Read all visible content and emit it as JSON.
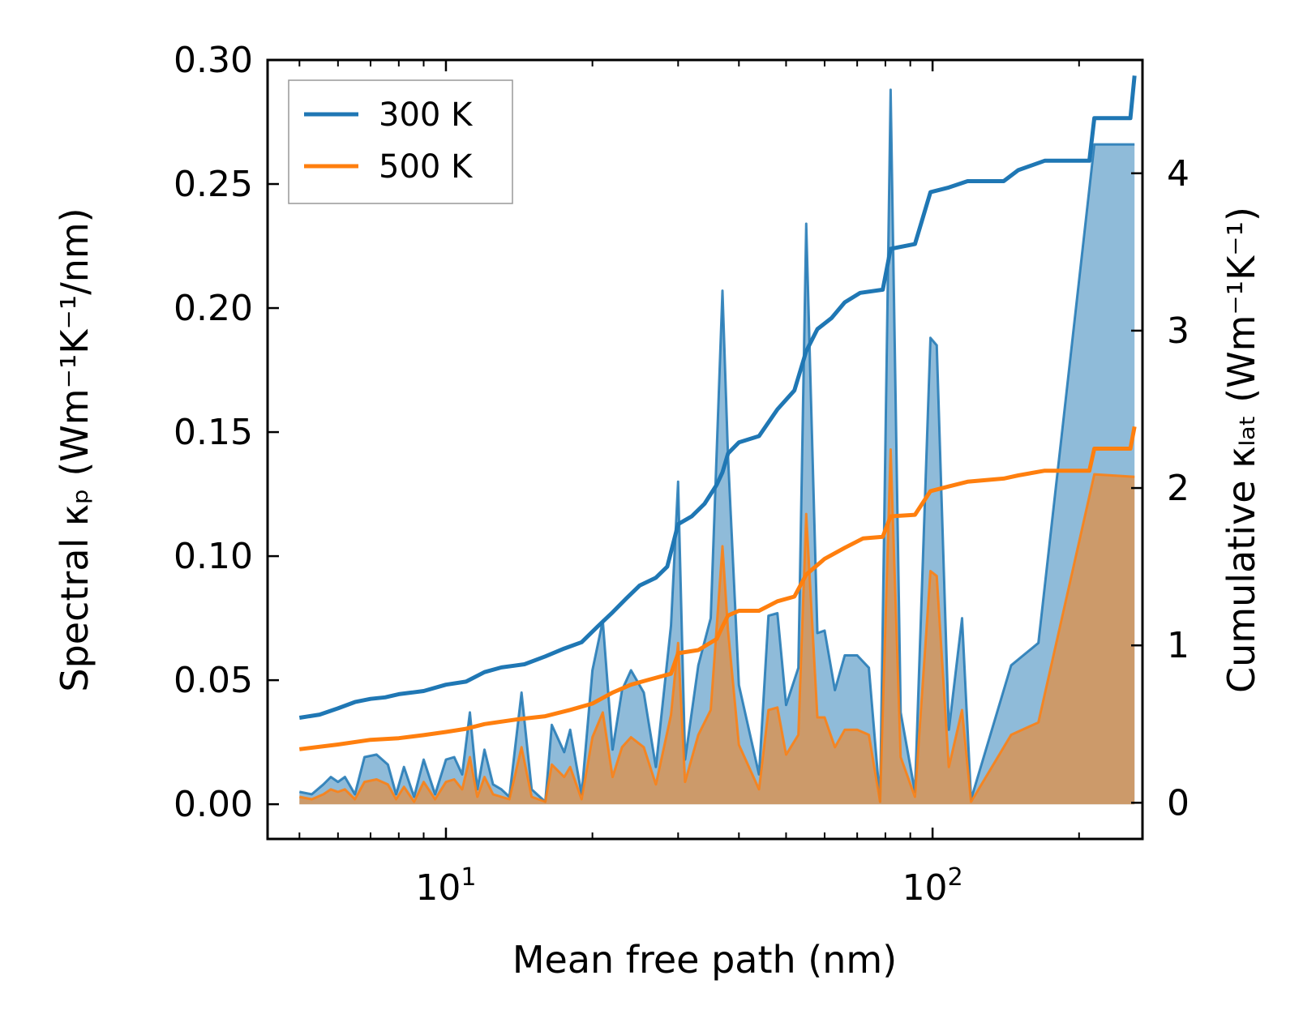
{
  "chart_data": {
    "type": "line",
    "title": "",
    "xlabel": "Mean free path (nm)",
    "ylabel": "Spectral κₚ (Wm⁻¹K⁻¹/nm)",
    "y2label": "Cumulative κₗₐₜ (Wm⁻¹K⁻¹)",
    "xscale": "log",
    "xlim": [
      4.3,
      270
    ],
    "ylim": [
      -0.014,
      0.3
    ],
    "y2lim": [
      -0.23,
      4.72
    ],
    "x_ticks": [
      {
        "value": 10,
        "base": "10",
        "exp": "1"
      },
      {
        "value": 100,
        "base": "10",
        "exp": "2"
      }
    ],
    "y_ticks": [
      "0.00",
      "0.05",
      "0.10",
      "0.15",
      "0.20",
      "0.25",
      "0.30"
    ],
    "y2_ticks": [
      "0",
      "1",
      "2",
      "3",
      "4"
    ],
    "legend_position": "top-left",
    "series": [
      {
        "name": "300 K",
        "color": "#1f77b4",
        "spectral": [
          [
            5.0,
            0.005
          ],
          [
            5.3,
            0.004
          ],
          [
            5.6,
            0.008
          ],
          [
            5.8,
            0.011
          ],
          [
            6.0,
            0.009
          ],
          [
            6.2,
            0.011
          ],
          [
            6.5,
            0.004
          ],
          [
            6.8,
            0.019
          ],
          [
            7.2,
            0.02
          ],
          [
            7.6,
            0.016
          ],
          [
            7.9,
            0.004
          ],
          [
            8.2,
            0.015
          ],
          [
            8.6,
            0.003
          ],
          [
            9.0,
            0.018
          ],
          [
            9.5,
            0.004
          ],
          [
            10.0,
            0.018
          ],
          [
            10.4,
            0.019
          ],
          [
            10.8,
            0.012
          ],
          [
            11.2,
            0.037
          ],
          [
            11.6,
            0.006
          ],
          [
            12.0,
            0.022
          ],
          [
            12.5,
            0.008
          ],
          [
            13.0,
            0.006
          ],
          [
            13.5,
            0.003
          ],
          [
            14.3,
            0.045
          ],
          [
            15.0,
            0.006
          ],
          [
            16.0,
            0.001
          ],
          [
            16.5,
            0.032
          ],
          [
            17.5,
            0.021
          ],
          [
            18.0,
            0.03
          ],
          [
            19.0,
            0.004
          ],
          [
            20.0,
            0.054
          ],
          [
            21.0,
            0.074
          ],
          [
            22.0,
            0.022
          ],
          [
            23.0,
            0.046
          ],
          [
            24.0,
            0.054
          ],
          [
            25.5,
            0.045
          ],
          [
            27.0,
            0.015
          ],
          [
            29.0,
            0.072
          ],
          [
            30.0,
            0.13
          ],
          [
            31.0,
            0.018
          ],
          [
            33.0,
            0.056
          ],
          [
            35.0,
            0.075
          ],
          [
            37.0,
            0.207
          ],
          [
            38.0,
            0.14
          ],
          [
            40.0,
            0.048
          ],
          [
            44.0,
            0.012
          ],
          [
            46.0,
            0.076
          ],
          [
            48.0,
            0.077
          ],
          [
            50.0,
            0.04
          ],
          [
            53.0,
            0.055
          ],
          [
            55.0,
            0.234
          ],
          [
            58.0,
            0.069
          ],
          [
            60.0,
            0.07
          ],
          [
            63.0,
            0.046
          ],
          [
            66.0,
            0.06
          ],
          [
            70.0,
            0.06
          ],
          [
            74.0,
            0.055
          ],
          [
            78.0,
            0.001
          ],
          [
            82.0,
            0.288
          ],
          [
            86.0,
            0.037
          ],
          [
            92.0,
            0.005
          ],
          [
            99.0,
            0.188
          ],
          [
            102.0,
            0.185
          ],
          [
            108.0,
            0.03
          ],
          [
            115.0,
            0.075
          ],
          [
            120.0,
            0.002
          ],
          [
            145.0,
            0.056
          ],
          [
            165.0,
            0.065
          ],
          [
            215.0,
            0.266
          ],
          [
            260.0,
            0.266
          ]
        ],
        "cumulative": [
          [
            5.0,
            0.54
          ],
          [
            5.5,
            0.56
          ],
          [
            6.0,
            0.6
          ],
          [
            6.5,
            0.64
          ],
          [
            7.0,
            0.66
          ],
          [
            7.5,
            0.67
          ],
          [
            8.0,
            0.69
          ],
          [
            8.5,
            0.7
          ],
          [
            9.0,
            0.71
          ],
          [
            10.0,
            0.75
          ],
          [
            11.0,
            0.77
          ],
          [
            12.0,
            0.83
          ],
          [
            13.0,
            0.86
          ],
          [
            14.5,
            0.88
          ],
          [
            16.0,
            0.93
          ],
          [
            17.5,
            0.98
          ],
          [
            19.0,
            1.02
          ],
          [
            20.5,
            1.12
          ],
          [
            22.0,
            1.21
          ],
          [
            23.5,
            1.3
          ],
          [
            25.0,
            1.38
          ],
          [
            27.0,
            1.43
          ],
          [
            28.5,
            1.5
          ],
          [
            30.0,
            1.77
          ],
          [
            32.0,
            1.82
          ],
          [
            34.0,
            1.9
          ],
          [
            36.0,
            2.02
          ],
          [
            37.0,
            2.1
          ],
          [
            38.0,
            2.22
          ],
          [
            40.0,
            2.29
          ],
          [
            44.0,
            2.33
          ],
          [
            48.0,
            2.5
          ],
          [
            52.0,
            2.62
          ],
          [
            55.0,
            2.87
          ],
          [
            58.0,
            3.01
          ],
          [
            62.0,
            3.08
          ],
          [
            66.0,
            3.18
          ],
          [
            71.0,
            3.24
          ],
          [
            79.0,
            3.26
          ],
          [
            82.0,
            3.52
          ],
          [
            92.0,
            3.55
          ],
          [
            99.0,
            3.88
          ],
          [
            108.0,
            3.91
          ],
          [
            118.0,
            3.95
          ],
          [
            140.0,
            3.95
          ],
          [
            150.0,
            4.02
          ],
          [
            170.0,
            4.08
          ],
          [
            210.0,
            4.08
          ],
          [
            215.0,
            4.35
          ],
          [
            255.0,
            4.35
          ],
          [
            260.0,
            4.62
          ]
        ]
      },
      {
        "name": "500 K",
        "color": "#ff7f0e",
        "spectral": [
          [
            5.0,
            0.003
          ],
          [
            5.3,
            0.002
          ],
          [
            5.6,
            0.004
          ],
          [
            5.8,
            0.006
          ],
          [
            6.0,
            0.005
          ],
          [
            6.2,
            0.006
          ],
          [
            6.5,
            0.002
          ],
          [
            6.8,
            0.009
          ],
          [
            7.2,
            0.01
          ],
          [
            7.6,
            0.008
          ],
          [
            7.9,
            0.002
          ],
          [
            8.2,
            0.007
          ],
          [
            8.6,
            0.001
          ],
          [
            9.0,
            0.009
          ],
          [
            9.5,
            0.002
          ],
          [
            10.0,
            0.009
          ],
          [
            10.4,
            0.01
          ],
          [
            10.8,
            0.006
          ],
          [
            11.2,
            0.019
          ],
          [
            11.6,
            0.003
          ],
          [
            12.0,
            0.011
          ],
          [
            12.5,
            0.004
          ],
          [
            13.0,
            0.003
          ],
          [
            13.5,
            0.002
          ],
          [
            14.3,
            0.023
          ],
          [
            15.0,
            0.003
          ],
          [
            16.0,
            0.001
          ],
          [
            16.5,
            0.016
          ],
          [
            17.5,
            0.011
          ],
          [
            18.0,
            0.015
          ],
          [
            19.0,
            0.002
          ],
          [
            20.0,
            0.027
          ],
          [
            21.0,
            0.037
          ],
          [
            22.0,
            0.011
          ],
          [
            23.0,
            0.023
          ],
          [
            24.0,
            0.027
          ],
          [
            25.5,
            0.023
          ],
          [
            27.0,
            0.008
          ],
          [
            29.0,
            0.036
          ],
          [
            30.0,
            0.065
          ],
          [
            31.0,
            0.009
          ],
          [
            33.0,
            0.028
          ],
          [
            35.0,
            0.038
          ],
          [
            37.0,
            0.104
          ],
          [
            38.0,
            0.07
          ],
          [
            40.0,
            0.024
          ],
          [
            44.0,
            0.006
          ],
          [
            46.0,
            0.038
          ],
          [
            48.0,
            0.039
          ],
          [
            50.0,
            0.02
          ],
          [
            53.0,
            0.028
          ],
          [
            55.0,
            0.117
          ],
          [
            58.0,
            0.035
          ],
          [
            60.0,
            0.035
          ],
          [
            63.0,
            0.023
          ],
          [
            66.0,
            0.03
          ],
          [
            70.0,
            0.03
          ],
          [
            74.0,
            0.028
          ],
          [
            78.0,
            0.001
          ],
          [
            82.0,
            0.143
          ],
          [
            86.0,
            0.019
          ],
          [
            92.0,
            0.003
          ],
          [
            99.0,
            0.094
          ],
          [
            102.0,
            0.092
          ],
          [
            108.0,
            0.015
          ],
          [
            115.0,
            0.038
          ],
          [
            120.0,
            0.001
          ],
          [
            145.0,
            0.028
          ],
          [
            165.0,
            0.033
          ],
          [
            215.0,
            0.133
          ],
          [
            260.0,
            0.132
          ]
        ],
        "cumulative": [
          [
            5.0,
            0.34
          ],
          [
            6.0,
            0.37
          ],
          [
            7.0,
            0.4
          ],
          [
            8.0,
            0.41
          ],
          [
            9.0,
            0.43
          ],
          [
            10.0,
            0.45
          ],
          [
            11.0,
            0.47
          ],
          [
            12.0,
            0.5
          ],
          [
            14.0,
            0.53
          ],
          [
            16.0,
            0.55
          ],
          [
            18.0,
            0.59
          ],
          [
            20.0,
            0.63
          ],
          [
            22.0,
            0.7
          ],
          [
            24.0,
            0.75
          ],
          [
            26.0,
            0.78
          ],
          [
            29.0,
            0.82
          ],
          [
            30.0,
            0.95
          ],
          [
            33.0,
            0.97
          ],
          [
            36.0,
            1.04
          ],
          [
            37.0,
            1.12
          ],
          [
            38.0,
            1.19
          ],
          [
            40.0,
            1.22
          ],
          [
            44.0,
            1.22
          ],
          [
            48.0,
            1.28
          ],
          [
            52.0,
            1.31
          ],
          [
            55.0,
            1.45
          ],
          [
            60.0,
            1.55
          ],
          [
            66.0,
            1.62
          ],
          [
            72.0,
            1.68
          ],
          [
            79.0,
            1.69
          ],
          [
            82.0,
            1.82
          ],
          [
            92.0,
            1.83
          ],
          [
            99.0,
            1.98
          ],
          [
            108.0,
            2.01
          ],
          [
            118.0,
            2.04
          ],
          [
            140.0,
            2.06
          ],
          [
            150.0,
            2.08
          ],
          [
            170.0,
            2.11
          ],
          [
            210.0,
            2.11
          ],
          [
            215.0,
            2.25
          ],
          [
            255.0,
            2.25
          ],
          [
            260.0,
            2.39
          ]
        ]
      }
    ]
  }
}
